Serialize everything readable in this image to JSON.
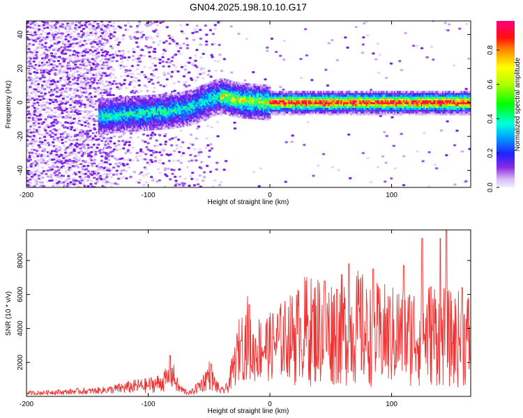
{
  "title": "GN04.2025.198.10.10.G17",
  "chart_data": [
    {
      "type": "heatmap",
      "xlabel": "Height of straight line (km)",
      "ylabel": "Frequency (Hz)",
      "xlim": [
        -200,
        165
      ],
      "ylim": [
        -50,
        48
      ],
      "xticks": [
        -200,
        -100,
        0,
        100
      ],
      "yticks": [
        -40,
        -20,
        0,
        20,
        40
      ],
      "colorbar": {
        "label": "Normalized spectral amplitude",
        "range": [
          0,
          0.97
        ],
        "ticks": [
          0.0,
          0.2,
          0.4,
          0.6,
          0.8
        ]
      },
      "ridge": [
        {
          "x": -135,
          "y": -8
        },
        {
          "x": -120,
          "y": -7
        },
        {
          "x": -100,
          "y": -6
        },
        {
          "x": -80,
          "y": -5
        },
        {
          "x": -65,
          "y": -3
        },
        {
          "x": -55,
          "y": 0
        },
        {
          "x": -45,
          "y": 3
        },
        {
          "x": -38,
          "y": 4
        },
        {
          "x": -30,
          "y": 2
        },
        {
          "x": -20,
          "y": 1
        },
        {
          "x": 0,
          "y": 0
        },
        {
          "x": 50,
          "y": 0
        },
        {
          "x": 100,
          "y": 0
        },
        {
          "x": 165,
          "y": 0
        }
      ],
      "grid": false
    },
    {
      "type": "line",
      "xlabel": "Height of straight line (km)",
      "ylabel": "SNR (10 * v/v)",
      "xlim": [
        -200,
        165
      ],
      "ylim": [
        0,
        9800
      ],
      "xticks": [
        -200,
        -100,
        0,
        100
      ],
      "yticks": [
        2000,
        4000,
        6000,
        8000
      ],
      "series": [
        {
          "color": "#ee3333",
          "x": [
            -200,
            -190,
            -180,
            -170,
            -160,
            -150,
            -140,
            -130,
            -120,
            -110,
            -100,
            -90,
            -85,
            -80,
            -75,
            -70,
            -65,
            -60,
            -55,
            -50,
            -45,
            -40,
            -35,
            -30,
            -25,
            -20,
            -18,
            -15,
            -10,
            -5,
            0,
            5,
            10,
            15,
            20,
            25,
            30,
            35,
            40,
            45,
            50,
            55,
            60,
            65,
            70,
            75,
            80,
            85,
            90,
            95,
            100,
            105,
            110,
            115,
            120,
            125,
            130,
            135,
            140,
            145,
            150,
            155,
            160,
            165
          ],
          "y": [
            200,
            200,
            250,
            250,
            300,
            300,
            350,
            400,
            500,
            600,
            650,
            800,
            1000,
            1300,
            500,
            300,
            200,
            500,
            800,
            1300,
            700,
            300,
            500,
            1600,
            2800,
            3200,
            3600,
            2400,
            2800,
            3000,
            2900,
            3200,
            3300,
            3500,
            3700,
            3500,
            4000,
            3800,
            4000,
            3900,
            3800,
            4000,
            3900,
            3800,
            4000,
            4100,
            3500,
            3700,
            3600,
            3600,
            3500,
            3700,
            3400,
            3600,
            3700,
            3500,
            3700,
            3800,
            3600,
            3500,
            3300,
            3400,
            3300,
            3500
          ],
          "peaks": [
            {
              "x": -82,
              "y": 2400
            },
            {
              "x": -48,
              "y": 1900
            },
            {
              "x": -24,
              "y": 3300
            },
            {
              "x": -17,
              "y": 5400
            },
            {
              "x": 25,
              "y": 4600
            },
            {
              "x": 45,
              "y": 6800
            },
            {
              "x": 55,
              "y": 6300
            },
            {
              "x": 65,
              "y": 7800
            },
            {
              "x": 85,
              "y": 7500
            },
            {
              "x": 110,
              "y": 7700
            },
            {
              "x": 125,
              "y": 9300
            },
            {
              "x": 140,
              "y": 9300
            },
            {
              "x": 145,
              "y": 9800
            },
            {
              "x": 158,
              "y": 6400
            }
          ]
        }
      ]
    }
  ]
}
